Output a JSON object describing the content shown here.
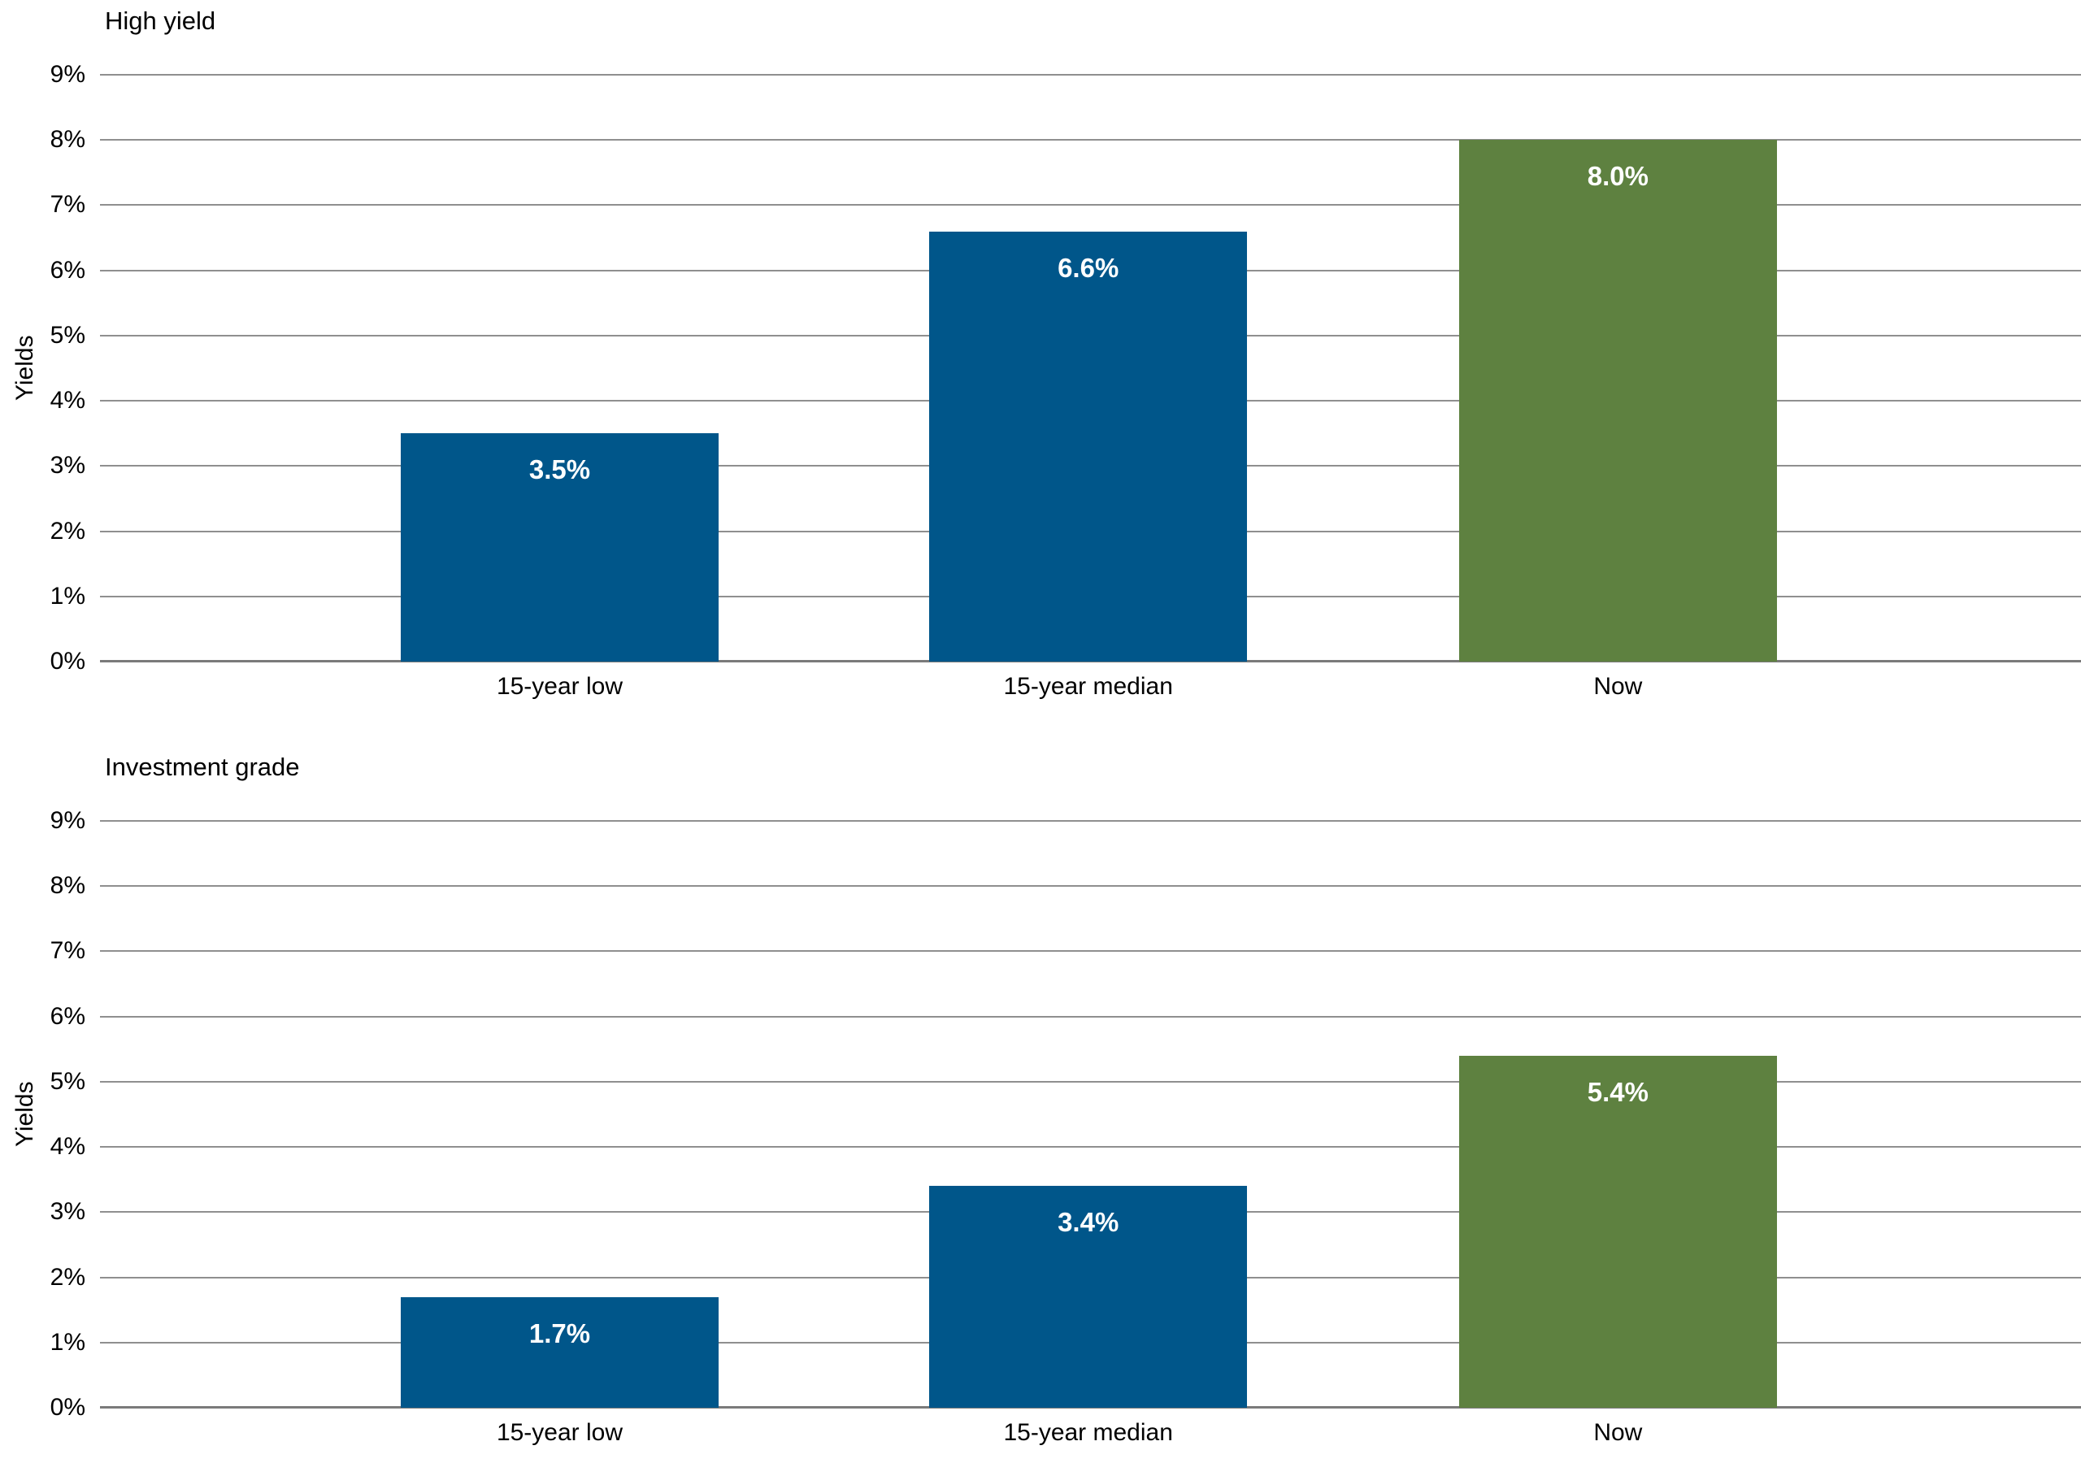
{
  "colors": {
    "blue": "#00568A",
    "green": "#5E8140",
    "gridline": "#8F8F8F",
    "axis_line": "#7A7A7A",
    "text": "#000000",
    "bar_label_text": "#FFFFFF",
    "background": "#FFFFFF"
  },
  "chart_data": [
    {
      "type": "bar",
      "title": "High yield",
      "ylabel": "Yields",
      "xlabel": "",
      "categories": [
        "15-year low",
        "15-year median",
        "Now"
      ],
      "values": [
        3.5,
        6.6,
        8.0
      ],
      "value_labels": [
        "3.5%",
        "6.6%",
        "8.0%"
      ],
      "bar_color_keys": [
        "blue",
        "blue",
        "green"
      ],
      "ylim": [
        0,
        9
      ],
      "yticks": [
        "0%",
        "1%",
        "2%",
        "3%",
        "4%",
        "5%",
        "6%",
        "7%",
        "8%",
        "9%"
      ],
      "grid": true,
      "legend": "none"
    },
    {
      "type": "bar",
      "title": "Investment grade",
      "ylabel": "Yields",
      "xlabel": "",
      "categories": [
        "15-year low",
        "15-year median",
        "Now"
      ],
      "values": [
        1.7,
        3.4,
        5.4
      ],
      "value_labels": [
        "1.7%",
        "3.4%",
        "5.4%"
      ],
      "bar_color_keys": [
        "blue",
        "blue",
        "green"
      ],
      "ylim": [
        0,
        9
      ],
      "yticks": [
        "0%",
        "1%",
        "2%",
        "3%",
        "4%",
        "5%",
        "6%",
        "7%",
        "8%",
        "9%"
      ],
      "grid": true,
      "legend": "none"
    }
  ]
}
